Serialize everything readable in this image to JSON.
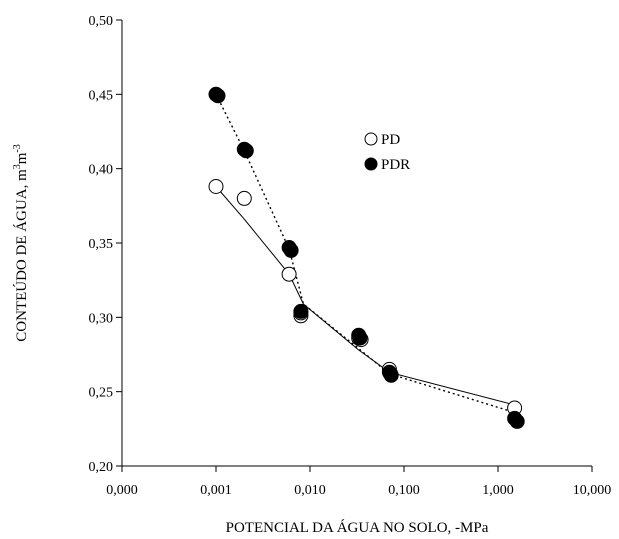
{
  "chart_data": {
    "type": "scatter",
    "xlabel": "POTENCIAL DA ÁGUA NO SOLO, -MPa",
    "ylabel_main": "CONTEÚDO DE ÁGUA, m",
    "ylabel_sup1": "3",
    "ylabel_mid": "m",
    "ylabel_sup2": "-3",
    "xscale": "log",
    "xlim": [
      0.0001,
      10
    ],
    "ylim": [
      0.2,
      0.5
    ],
    "x_ticks": [
      {
        "value": 0.0001,
        "label": "0,000"
      },
      {
        "value": 0.001,
        "label": "0,001"
      },
      {
        "value": 0.01,
        "label": "0,010"
      },
      {
        "value": 0.1,
        "label": "0,100"
      },
      {
        "value": 1,
        "label": "1,000"
      },
      {
        "value": 10,
        "label": "10,000"
      }
    ],
    "y_ticks": [
      {
        "value": 0.2,
        "label": "0,20"
      },
      {
        "value": 0.25,
        "label": "0,25"
      },
      {
        "value": 0.3,
        "label": "0,30"
      },
      {
        "value": 0.35,
        "label": "0,35"
      },
      {
        "value": 0.4,
        "label": "0,40"
      },
      {
        "value": 0.45,
        "label": "0,45"
      },
      {
        "value": 0.5,
        "label": "0,50"
      }
    ],
    "grid": false,
    "legend": {
      "position": "top-right"
    },
    "series": [
      {
        "name": "PD",
        "marker": "open-circle",
        "line": "solid",
        "points": [
          {
            "x": 0.001,
            "y": 0.388
          },
          {
            "x": 0.002,
            "y": 0.38
          },
          {
            "x": 0.006,
            "y": 0.329
          },
          {
            "x": 0.008,
            "y": 0.301
          },
          {
            "x": 0.008,
            "y": 0.303
          },
          {
            "x": 0.033,
            "y": 0.286
          },
          {
            "x": 0.035,
            "y": 0.285
          },
          {
            "x": 0.07,
            "y": 0.265
          },
          {
            "x": 0.072,
            "y": 0.262
          },
          {
            "x": 1.5,
            "y": 0.239
          }
        ],
        "curve": [
          {
            "x": 0.001,
            "y": 0.388
          },
          {
            "x": 0.002,
            "y": 0.366
          },
          {
            "x": 0.006,
            "y": 0.329
          },
          {
            "x": 0.0085,
            "y": 0.309
          },
          {
            "x": 0.033,
            "y": 0.278
          },
          {
            "x": 0.07,
            "y": 0.263
          },
          {
            "x": 1.5,
            "y": 0.241
          }
        ]
      },
      {
        "name": "PDR",
        "marker": "filled-circle",
        "line": "dotted",
        "points": [
          {
            "x": 0.001,
            "y": 0.45
          },
          {
            "x": 0.00105,
            "y": 0.449
          },
          {
            "x": 0.002,
            "y": 0.413
          },
          {
            "x": 0.0021,
            "y": 0.412
          },
          {
            "x": 0.006,
            "y": 0.347
          },
          {
            "x": 0.0063,
            "y": 0.345
          },
          {
            "x": 0.008,
            "y": 0.304
          },
          {
            "x": 0.033,
            "y": 0.288
          },
          {
            "x": 0.034,
            "y": 0.286
          },
          {
            "x": 0.07,
            "y": 0.263
          },
          {
            "x": 0.073,
            "y": 0.261
          },
          {
            "x": 1.5,
            "y": 0.232
          },
          {
            "x": 1.6,
            "y": 0.23
          }
        ],
        "curve": [
          {
            "x": 0.001,
            "y": 0.45
          },
          {
            "x": 0.002,
            "y": 0.412
          },
          {
            "x": 0.006,
            "y": 0.346
          },
          {
            "x": 0.0085,
            "y": 0.309
          },
          {
            "x": 0.033,
            "y": 0.279
          },
          {
            "x": 0.07,
            "y": 0.262
          },
          {
            "x": 1.5,
            "y": 0.236
          }
        ]
      }
    ]
  }
}
